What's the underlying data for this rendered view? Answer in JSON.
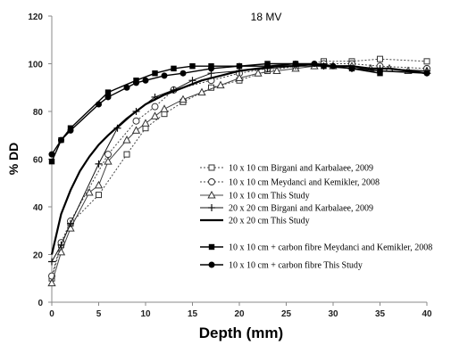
{
  "chart_data": {
    "type": "line",
    "title": "18 MV",
    "xlabel": "Depth (mm)",
    "ylabel": "% DD",
    "xlim": [
      0,
      40
    ],
    "ylim": [
      0,
      120
    ],
    "xticks": [
      0,
      5,
      10,
      15,
      20,
      25,
      30,
      35,
      40
    ],
    "yticks": [
      0,
      20,
      40,
      60,
      80,
      100,
      120
    ],
    "grid": false,
    "legend_position": "lower-right",
    "series": [
      {
        "name": "10 x 10 cm Birgani  and Karbalaee, 2009",
        "style": "dotted-open-square",
        "x": [
          0,
          1,
          2,
          5,
          8,
          10,
          12,
          14,
          17,
          20,
          23,
          26,
          29,
          32,
          35,
          40
        ],
        "y": [
          10,
          24,
          33,
          45,
          62,
          73,
          79,
          84,
          90,
          93,
          97,
          99,
          101,
          101,
          102,
          101
        ]
      },
      {
        "name": "10 x 10 cm  Meydanci  and  Kemikler,  2008",
        "style": "dotted-open-circle",
        "x": [
          0,
          1,
          2,
          6,
          9,
          11,
          13,
          17,
          20,
          23,
          26,
          29,
          32,
          35,
          40
        ],
        "y": [
          11,
          25,
          34,
          62,
          76,
          82,
          89,
          93,
          96,
          98,
          99,
          100,
          100,
          99,
          98
        ]
      },
      {
        "name": "10 x 10 cm This  Study",
        "style": "solid-open-triangle",
        "x": [
          0,
          1,
          2,
          4,
          5,
          6,
          8,
          9,
          10,
          11,
          12,
          14,
          16,
          18,
          20,
          22,
          24,
          26,
          28,
          30,
          32,
          34,
          36,
          38,
          40
        ],
        "y": [
          8,
          21,
          31,
          46,
          49,
          59,
          68,
          72,
          75,
          78,
          81,
          85,
          88,
          91,
          94,
          96,
          97,
          98,
          99,
          99,
          99,
          98,
          98,
          97,
          97
        ]
      },
      {
        "name": "20 x 20 cm Birgani  and Karbalaee, 2009",
        "style": "solid-plus",
        "x": [
          0,
          1,
          2,
          5,
          7,
          9,
          11,
          13,
          15,
          17,
          20,
          23,
          26,
          29,
          32,
          35,
          40
        ],
        "y": [
          17,
          24,
          33,
          58,
          73,
          80,
          86,
          89,
          93,
          96,
          97,
          98,
          99,
          99,
          98,
          98,
          97
        ]
      },
      {
        "name": "20 x 20 cm This  Study",
        "style": "solid-thick",
        "x": [
          0,
          1,
          2,
          3,
          4,
          5,
          6,
          8,
          10,
          12,
          14,
          16,
          18,
          20,
          22,
          24,
          26,
          28,
          30,
          32,
          34,
          36,
          38,
          40
        ],
        "y": [
          20,
          37,
          47,
          55,
          61,
          66,
          70,
          77,
          83,
          87,
          90,
          93,
          95,
          97,
          98,
          99,
          99,
          100,
          99,
          99,
          98,
          98,
          97,
          96
        ]
      },
      {
        "name": "10 x 10 cm + carbon fibre  Meydanci  and  Kemikler,  2008",
        "style": "solid-filled-square",
        "x": [
          0,
          1,
          2,
          6,
          9,
          11,
          13,
          15,
          17,
          20,
          23,
          26,
          29,
          32,
          35
        ],
        "y": [
          59,
          68,
          73,
          88,
          93,
          96,
          98,
          99,
          99,
          99,
          100,
          100,
          99,
          98,
          96
        ]
      },
      {
        "name": "10 x 10 cm + carbon fibre  This  Study",
        "style": "solid-filled-circle",
        "x": [
          0,
          1,
          2,
          5,
          6,
          8,
          9,
          10,
          12,
          14,
          17,
          20,
          23,
          26,
          28,
          30,
          32,
          35,
          40
        ],
        "y": [
          62,
          68,
          72,
          83,
          86,
          90,
          92,
          93,
          95,
          96,
          98,
          99,
          99,
          100,
          100,
          99,
          98,
          97,
          96
        ]
      }
    ]
  }
}
